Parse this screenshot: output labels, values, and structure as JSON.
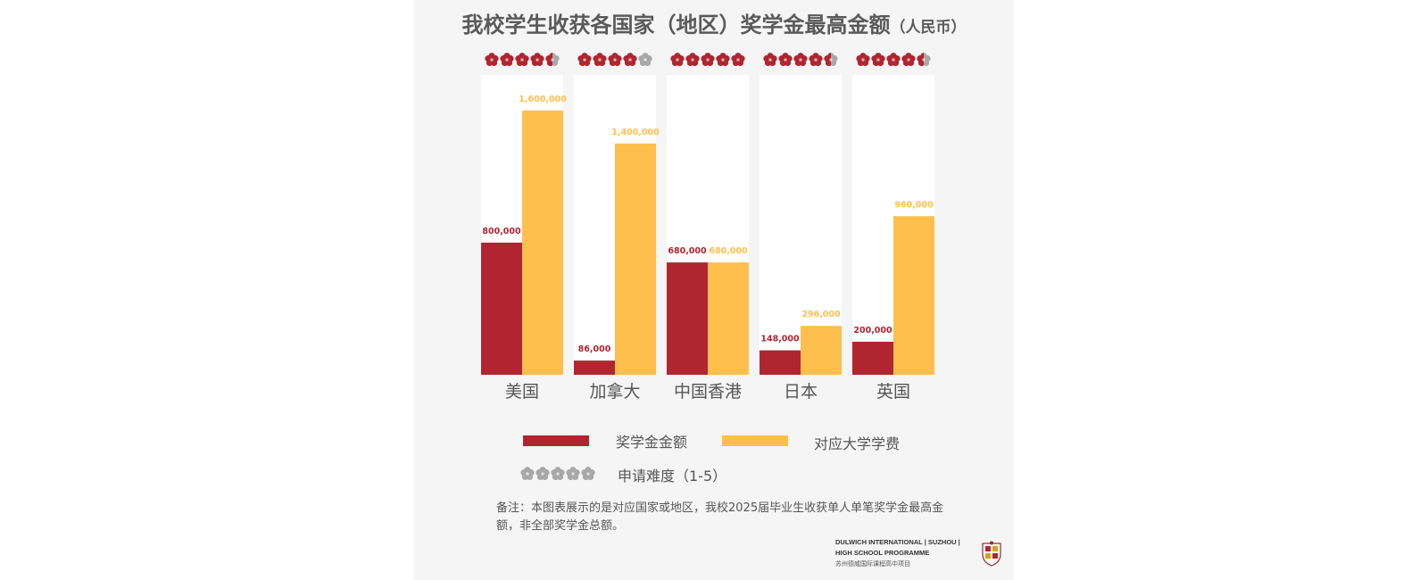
{
  "title": "我校学生收获各国家（地区）奖学金最高金额",
  "title_unit": "（人民币）",
  "chart_data": {
    "type": "bar",
    "categories": [
      "美国",
      "加拿大",
      "中国香港",
      "日本",
      "英国"
    ],
    "series": [
      {
        "name": "奖学金金额",
        "color": "#b0252f",
        "values": [
          800000,
          86000,
          680000,
          148000,
          200000
        ],
        "labels": [
          "800,000",
          "86,000",
          "680,000",
          "148,000",
          "200,000"
        ]
      },
      {
        "name": "对应大学学费",
        "color": "#ffbf4d",
        "values": [
          1600000,
          1400000,
          680000,
          296000,
          960000
        ],
        "labels": [
          "1,600,000",
          "1,400,000",
          "680,000",
          "296,000",
          "960,000"
        ]
      }
    ],
    "difficulty": [
      4.5,
      4,
      5,
      4.5,
      4.5
    ],
    "difficulty_max": 5,
    "ylim": [
      0,
      1750000
    ],
    "grid": false,
    "legend_position": "bottom"
  },
  "legend": {
    "scholarship": "奖学金金额",
    "tuition": "对应大学学费",
    "difficulty": "申请难度（1-5）"
  },
  "note": "备注：本图表展示的是对应国家或地区，我校2025届毕业生收获单人单笔奖学金最高金额，非全部奖学金总额。",
  "brand": {
    "line1": "DULWICH INTERNATIONAL | SUZHOU |",
    "line2": "HIGH SCHOOL PROGRAMME",
    "line3": "苏州德威国际课程高中项目"
  },
  "colors": {
    "scholarship": "#b0252f",
    "tuition": "#ffbf4d",
    "star_off": "#a8a8a8",
    "panel": "#ffffff",
    "text": "#555555"
  },
  "icons": {
    "difficulty": "flower-icon"
  }
}
